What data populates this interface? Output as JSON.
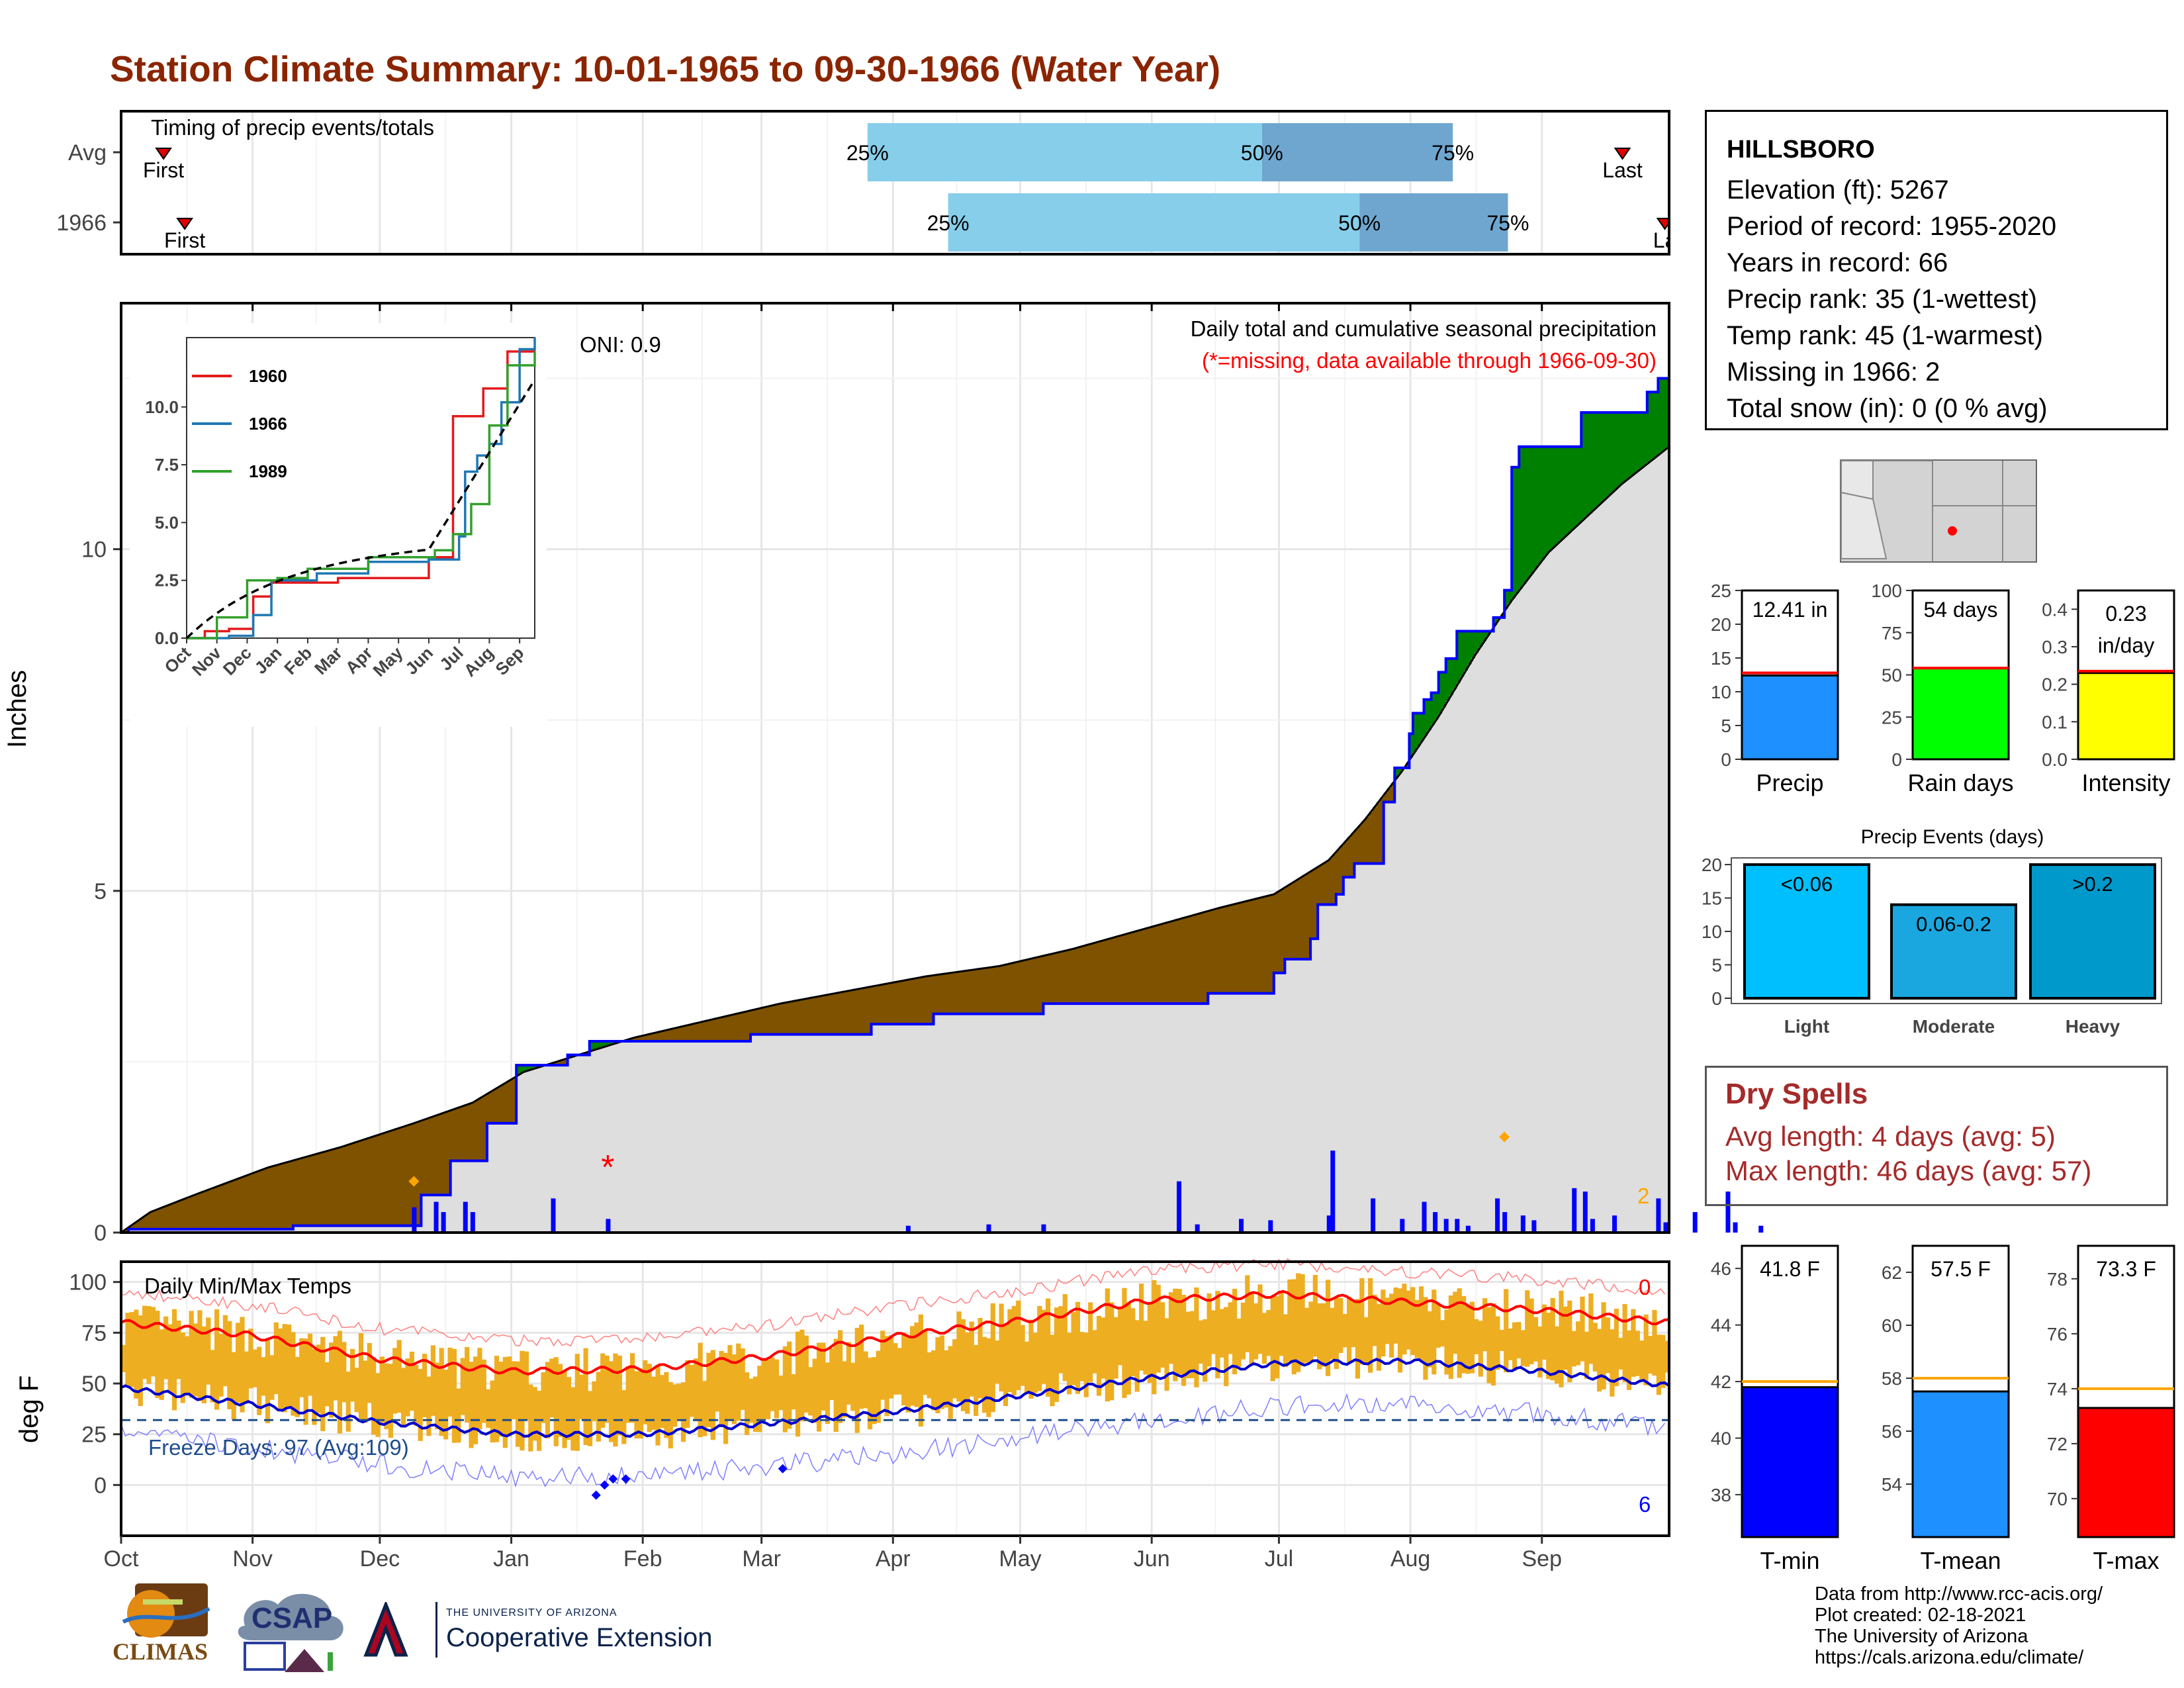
{
  "title": "Station Climate Summary: 10-01-1965 to 09-30-1966 (Water Year)",
  "colors": {
    "title": "#8b2500",
    "precip_bar": "#0000ff",
    "cumulative_line": "#0000ff",
    "above_avg_fill": "#008000",
    "below_avg_fill": "#7f5200",
    "avg_fill": "#dedede",
    "temp_bar": "#eeae22",
    "tmax_avg": "#ff0000",
    "tmin_avg": "#0000cd",
    "timing_light": "#87ceeb",
    "timing_dark": "#6fa6cf",
    "freeze_line": "#1f4e8c",
    "missing_marker": "#ff0000",
    "dry_spells": "#a52a2a"
  },
  "timing": {
    "label": "Timing of precip events/totals",
    "rows": [
      {
        "name": "Avg",
        "first": "First",
        "last": "Last",
        "p25": "25%",
        "p50": "50%",
        "p75": "75%",
        "first_date": "1965-10-11",
        "last_date": "1966-09-20",
        "p25_date": "1966-03-26",
        "p50_date": "1966-06-27",
        "p75_date": "1966-08-11"
      },
      {
        "name": "1966",
        "first": "First",
        "last": "La",
        "p25": "25%",
        "p50": "50%",
        "p75": "75%",
        "first_date": "1965-10-16",
        "last_date": "1966-09-30",
        "p25_date": "1966-04-14",
        "p50_date": "1966-07-20",
        "p75_date": "1966-08-24"
      }
    ]
  },
  "precip_panel": {
    "ylabel": "Inches",
    "oni": "ONI: 0.9",
    "caption": "Daily total and cumulative seasonal precipitation",
    "missing_note": "(*=missing, data available through 1966-09-30)",
    "extreme_count": "2"
  },
  "inset": {
    "legend": [
      "1960",
      "1966",
      "1989"
    ],
    "yticks": [
      "0.0",
      "2.5",
      "5.0",
      "7.5",
      "10.0"
    ],
    "xticks": [
      "Oct",
      "Nov",
      "Dec",
      "Jan",
      "Feb",
      "Mar",
      "Apr",
      "May",
      "Jun",
      "Jul",
      "Aug",
      "Sep"
    ]
  },
  "temp_panel": {
    "ylabel": "deg F",
    "label": "Daily Min/Max Temps",
    "freeze": "Freeze Days: 97 (Avg:109)",
    "max_count": "0",
    "min_count": "6"
  },
  "months": [
    "Oct",
    "Nov",
    "Dec",
    "Jan",
    "Feb",
    "Mar",
    "Apr",
    "May",
    "Jun",
    "Jul",
    "Aug",
    "Sep"
  ],
  "station": {
    "name": "HILLSBORO",
    "elevation": "Elevation (ft): 5267",
    "period": "Period of record: 1955-2020",
    "years": "Years in record: 66",
    "precip_rank": "Precip rank: 35 (1-wettest)",
    "temp_rank": "Temp rank: 45 (1-warmest)",
    "missing": "Missing in 1966: 2",
    "snow": "Total snow (in): 0 (0 % avg)"
  },
  "summary_bars": [
    {
      "name": "Precip",
      "label": "12.41 in",
      "value": 12.41,
      "avg": 12.8,
      "ymax": 25,
      "ticks": [
        "0",
        "5",
        "10",
        "15",
        "20",
        "25"
      ],
      "color": "#1e90ff"
    },
    {
      "name": "Rain days",
      "label": "54 days",
      "value": 54,
      "avg": 54,
      "ymax": 100,
      "ticks": [
        "0",
        "25",
        "50",
        "75",
        "100"
      ],
      "color": "#00ff00"
    },
    {
      "name": "Intensity",
      "label": "0.23",
      "label2": "in/day",
      "value": 0.23,
      "avg": 0.235,
      "ymax": 0.45,
      "ticks": [
        "0.0",
        "0.1",
        "0.2",
        "0.3",
        "0.4"
      ],
      "color": "#ffff00"
    }
  ],
  "events": {
    "title": "Precip Events (days)",
    "ticks": [
      "0",
      "5",
      "10",
      "15",
      "20"
    ],
    "bars": [
      {
        "cat": "Light",
        "label": "<0.06",
        "value": 20,
        "color": "#00bfff"
      },
      {
        "cat": "Moderate",
        "label": "0.06-0.2",
        "value": 14,
        "color": "#1aa7e0"
      },
      {
        "cat": "Heavy",
        "label": ">0.2",
        "value": 20,
        "color": "#0099cc"
      }
    ]
  },
  "dry_spells": {
    "title": "Dry Spells",
    "avg": "Avg length: 4 days (avg: 5)",
    "max": "Max length: 46 days (avg: 57)"
  },
  "temp_bars": [
    {
      "name": "T-min",
      "label": "41.8 F",
      "value": 41.8,
      "avg": 42.0,
      "ymin": 36.5,
      "ymax": 46.8,
      "ticks": [
        "38",
        "40",
        "42",
        "44",
        "46"
      ],
      "color": "#0000ff"
    },
    {
      "name": "T-mean",
      "label": "57.5 F",
      "value": 57.5,
      "avg": 58.0,
      "ymin": 52.0,
      "ymax": 63.0,
      "ticks": [
        "54",
        "56",
        "58",
        "60",
        "62"
      ],
      "color": "#1e90ff"
    },
    {
      "name": "T-max",
      "label": "73.3 F",
      "value": 73.3,
      "avg": 74.0,
      "ymin": 68.6,
      "ymax": 79.2,
      "ticks": [
        "70",
        "72",
        "74",
        "76",
        "78"
      ],
      "color": "#ff0000"
    }
  ],
  "credits": [
    "Data from http://www.rcc-acis.org/",
    "Plot created: 02-18-2021",
    "The University of Arizona",
    "https://cals.arizona.edu/climate/"
  ],
  "logos": {
    "climas": "CLIMAS",
    "csap": "CSAP",
    "ua_small": "THE UNIVERSITY OF ARIZONA",
    "ua_big": "Cooperative Extension"
  },
  "chart_data": {
    "type": "area",
    "title": "Daily total and cumulative seasonal precipitation",
    "ylabel": "Inches",
    "ylim": [
      0,
      13.6
    ],
    "yticks": [
      0,
      5,
      10
    ],
    "cumulative_1966": [
      [
        0,
        0
      ],
      [
        2,
        0.05
      ],
      [
        44,
        0.05
      ],
      [
        47,
        0.1
      ],
      [
        78,
        0.1
      ],
      [
        82,
        0.55
      ],
      [
        87,
        0.55
      ],
      [
        90,
        1.05
      ],
      [
        96,
        1.05
      ],
      [
        100,
        1.6
      ],
      [
        105,
        1.6
      ],
      [
        108,
        2.45
      ],
      [
        118,
        2.45
      ],
      [
        122,
        2.6
      ],
      [
        125,
        2.6
      ],
      [
        128,
        2.8
      ],
      [
        168,
        2.8
      ],
      [
        172,
        2.9
      ],
      [
        200,
        2.9
      ],
      [
        205,
        3.05
      ],
      [
        218,
        3.05
      ],
      [
        222,
        3.2
      ],
      [
        250,
        3.2
      ],
      [
        252,
        3.35
      ],
      [
        295,
        3.35
      ],
      [
        297,
        3.5
      ],
      [
        305,
        3.5
      ],
      [
        315,
        3.8
      ],
      [
        318,
        4.0
      ],
      [
        325,
        4.3
      ],
      [
        327,
        4.8
      ],
      [
        332,
        4.95
      ],
      [
        334,
        5.2
      ],
      [
        337,
        5.4
      ],
      [
        345,
        6.3
      ],
      [
        348,
        6.8
      ],
      [
        352,
        7.3
      ],
      [
        353,
        7.6
      ],
      [
        356,
        7.8
      ],
      [
        358,
        7.9
      ],
      [
        360,
        8.2
      ],
      [
        362,
        8.4
      ],
      [
        365,
        8.8
      ],
      [
        375,
        9.0
      ],
      [
        378,
        9.4
      ],
      [
        380,
        11.2
      ],
      [
        382,
        11.5
      ],
      [
        397,
        11.5
      ],
      [
        399,
        12.0
      ],
      [
        415,
        12.0
      ],
      [
        417,
        12.3
      ],
      [
        420,
        12.5
      ],
      [
        423,
        12.5
      ]
    ],
    "average": [
      [
        0,
        0
      ],
      [
        8,
        0.3
      ],
      [
        20,
        0.55
      ],
      [
        40,
        0.95
      ],
      [
        60,
        1.25
      ],
      [
        80,
        1.6
      ],
      [
        96,
        1.9
      ],
      [
        110,
        2.35
      ],
      [
        125,
        2.6
      ],
      [
        140,
        2.85
      ],
      [
        160,
        3.1
      ],
      [
        180,
        3.35
      ],
      [
        200,
        3.55
      ],
      [
        220,
        3.75
      ],
      [
        240,
        3.9
      ],
      [
        260,
        4.15
      ],
      [
        280,
        4.45
      ],
      [
        300,
        4.75
      ],
      [
        315,
        4.95
      ],
      [
        330,
        5.45
      ],
      [
        340,
        6.05
      ],
      [
        350,
        6.75
      ],
      [
        360,
        7.55
      ],
      [
        370,
        8.45
      ],
      [
        380,
        9.25
      ],
      [
        390,
        9.95
      ],
      [
        400,
        10.45
      ],
      [
        410,
        10.95
      ],
      [
        423,
        11.5
      ]
    ],
    "daily_precip": [
      [
        80,
        0.37
      ],
      [
        86,
        0.45
      ],
      [
        88,
        0.3
      ],
      [
        94,
        0.45
      ],
      [
        96,
        0.3
      ],
      [
        118,
        0.5
      ],
      [
        133,
        0.2
      ],
      [
        215,
        0.1
      ],
      [
        237,
        0.12
      ],
      [
        252,
        0.12
      ],
      [
        289,
        0.75
      ],
      [
        294,
        0.12
      ],
      [
        306,
        0.2
      ],
      [
        314,
        0.18
      ],
      [
        330,
        0.25
      ],
      [
        331,
        1.2
      ],
      [
        342,
        0.5
      ],
      [
        350,
        0.2
      ],
      [
        356,
        0.45
      ],
      [
        359,
        0.3
      ],
      [
        362,
        0.2
      ],
      [
        365,
        0.2
      ],
      [
        368,
        0.1
      ],
      [
        376,
        0.5
      ],
      [
        378,
        0.3
      ],
      [
        383,
        0.25
      ],
      [
        386,
        0.18
      ],
      [
        397,
        0.65
      ],
      [
        400,
        0.6
      ],
      [
        402,
        0.2
      ],
      [
        408,
        0.25
      ],
      [
        420,
        0.5
      ],
      [
        422,
        0.15
      ],
      [
        430,
        0.3
      ],
      [
        439,
        0.6
      ],
      [
        441,
        0.15
      ],
      [
        448,
        0.1
      ]
    ],
    "x_units": "days since 1965-10-01",
    "temperature": {
      "ylim": [
        -25,
        110
      ],
      "yticks": [
        0,
        25,
        50,
        75,
        100
      ],
      "freeze_threshold": 32,
      "avg_tmax": [
        [
          0,
          80
        ],
        [
          30,
          74
        ],
        [
          61,
          62
        ],
        [
          92,
          56
        ],
        [
          123,
          57
        ],
        [
          151,
          63
        ],
        [
          182,
          73
        ],
        [
          212,
          81
        ],
        [
          243,
          91
        ],
        [
          273,
          94
        ],
        [
          304,
          90
        ],
        [
          335,
          86
        ],
        [
          365,
          80
        ]
      ],
      "avg_tmin": [
        [
          0,
          48
        ],
        [
          30,
          40
        ],
        [
          61,
          31
        ],
        [
          92,
          25
        ],
        [
          123,
          25
        ],
        [
          151,
          30
        ],
        [
          182,
          36
        ],
        [
          212,
          44
        ],
        [
          243,
          53
        ],
        [
          273,
          60
        ],
        [
          304,
          61
        ],
        [
          335,
          56
        ],
        [
          365,
          49
        ]
      ]
    }
  }
}
